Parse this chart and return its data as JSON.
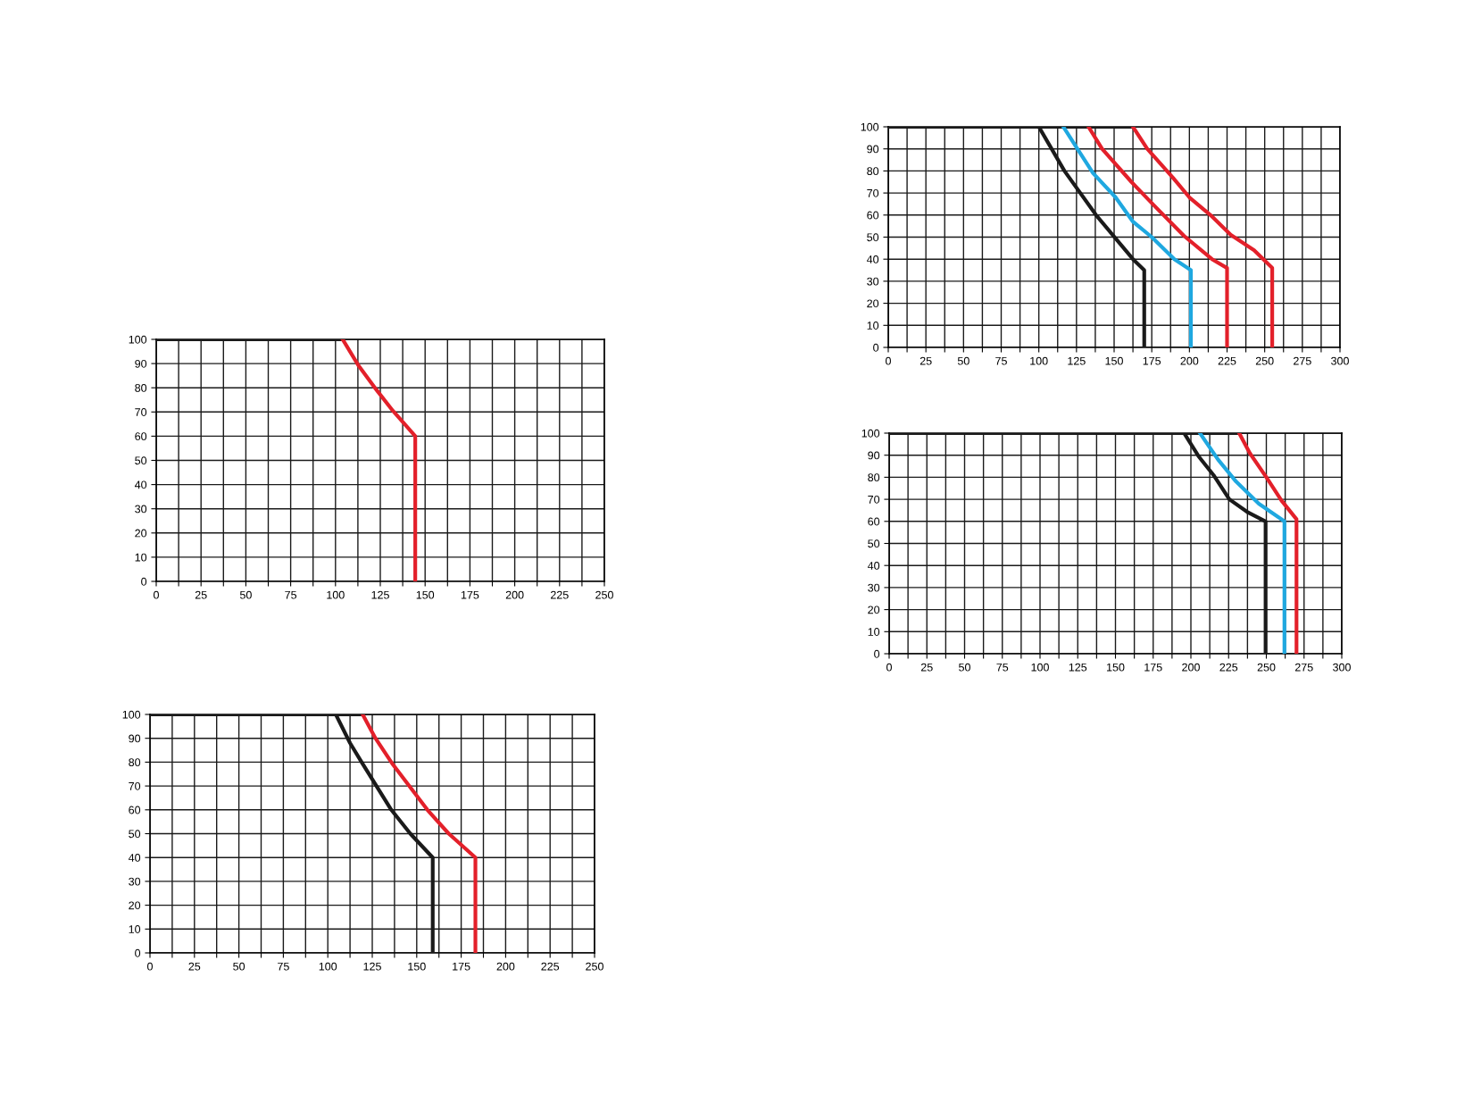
{
  "chart_data": [
    {
      "type": "line",
      "xlim": [
        0,
        250
      ],
      "ylim": [
        0,
        100
      ],
      "grid": true,
      "xticks": [
        0,
        {
          "value": 12.5,
          "label": null
        },
        25,
        {
          "value": 37.5,
          "label": null
        },
        50,
        {
          "value": 62.5,
          "label": null
        },
        75,
        {
          "value": 87.5,
          "label": null
        },
        100,
        {
          "value": 112.5,
          "label": null
        },
        125,
        {
          "value": 137.5,
          "label": null
        },
        150,
        {
          "value": 162.5,
          "label": null
        },
        175,
        {
          "value": 187.5,
          "label": null
        },
        200,
        {
          "value": 212.5,
          "label": null
        },
        225,
        {
          "value": 237.5,
          "label": null
        },
        250
      ],
      "yticks": [
        0,
        10,
        20,
        30,
        40,
        50,
        60,
        70,
        80,
        90,
        100
      ],
      "series": [
        {
          "color": "#1a1a1a",
          "x": [
            0,
            104
          ],
          "values": [
            100,
            100
          ]
        },
        {
          "color": "#e3202a",
          "x": [
            104,
            113,
            123,
            132,
            144.5,
            144.5
          ],
          "values": [
            100,
            89,
            79,
            70.5,
            60,
            0
          ]
        }
      ]
    },
    {
      "type": "line",
      "xlim": [
        0,
        250
      ],
      "ylim": [
        0,
        100
      ],
      "grid": true,
      "xticks": [
        0,
        {
          "value": 12.5,
          "label": null
        },
        25,
        {
          "value": 37.5,
          "label": null
        },
        50,
        {
          "value": 62.5,
          "label": null
        },
        75,
        {
          "value": 87.5,
          "label": null
        },
        100,
        {
          "value": 112.5,
          "label": null
        },
        125,
        {
          "value": 137.5,
          "label": null
        },
        150,
        {
          "value": 162.5,
          "label": null
        },
        175,
        {
          "value": 187.5,
          "label": null
        },
        200,
        {
          "value": 212.5,
          "label": null
        },
        225,
        {
          "value": 237.5,
          "label": null
        },
        250
      ],
      "yticks": [
        0,
        10,
        20,
        30,
        40,
        50,
        60,
        70,
        80,
        90,
        100
      ],
      "series": [
        {
          "color": "#1a1a1a",
          "x": [
            0,
            119.6
          ],
          "values": [
            100,
            100
          ]
        },
        {
          "color": "#1a1a1a",
          "x": [
            104.5,
            112.5,
            119,
            135.7,
            146.4,
            159,
            159
          ],
          "values": [
            100,
            88,
            80,
            60,
            50,
            40,
            0
          ]
        },
        {
          "color": "#e3202a",
          "x": [
            119.6,
            126.8,
            136.6,
            156,
            168,
            183,
            183
          ],
          "values": [
            100,
            90,
            79,
            60,
            50,
            40,
            0
          ]
        }
      ]
    },
    {
      "type": "line",
      "xlim": [
        0,
        300
      ],
      "ylim": [
        0,
        100
      ],
      "grid": true,
      "xticks": [
        0,
        {
          "value": 12.5,
          "label": null
        },
        25,
        {
          "value": 37.5,
          "label": null
        },
        50,
        {
          "value": 62.5,
          "label": null
        },
        75,
        {
          "value": 87.5,
          "label": null
        },
        100,
        {
          "value": 112.5,
          "label": null
        },
        125,
        {
          "value": 137.5,
          "label": null
        },
        150,
        {
          "value": 162.5,
          "label": null
        },
        175,
        {
          "value": 187.5,
          "label": null
        },
        200,
        {
          "value": 212.5,
          "label": null
        },
        225,
        {
          "value": 237.5,
          "label": null
        },
        250,
        {
          "value": 262.5,
          "label": null
        },
        275,
        {
          "value": 287.5,
          "label": null
        },
        300
      ],
      "yticks": [
        0,
        10,
        20,
        30,
        40,
        50,
        60,
        70,
        80,
        90,
        100
      ],
      "series": [
        {
          "color": "#1a1a1a",
          "x": [
            0,
            162.5
          ],
          "values": [
            100,
            100
          ]
        },
        {
          "color": "#1a1a1a",
          "x": [
            100,
            117,
            138,
            162.5,
            170,
            170
          ],
          "values": [
            100,
            80,
            60,
            40,
            35,
            0
          ]
        },
        {
          "color": "#1fa8e0",
          "x": [
            116.3,
            125.6,
            136,
            151,
            162.5,
            175,
            190,
            201,
            201
          ],
          "values": [
            100,
            90,
            79,
            68,
            57,
            50,
            40,
            35,
            0
          ]
        },
        {
          "color": "#e3202a",
          "x": [
            133,
            142,
            161.5,
            177,
            196.5,
            215,
            225,
            225
          ],
          "values": [
            100,
            90,
            75,
            64,
            50.5,
            40,
            36,
            0
          ]
        },
        {
          "color": "#e3202a",
          "x": [
            162.5,
            172,
            189,
            200,
            214,
            227.5,
            243,
            255,
            255
          ],
          "values": [
            100,
            90,
            77,
            68,
            60,
            51,
            44,
            36,
            0
          ]
        }
      ]
    },
    {
      "type": "line",
      "xlim": [
        0,
        300
      ],
      "ylim": [
        0,
        100
      ],
      "grid": true,
      "xticks": [
        0,
        {
          "value": 12.5,
          "label": null
        },
        25,
        {
          "value": 37.5,
          "label": null
        },
        50,
        {
          "value": 62.5,
          "label": null
        },
        75,
        {
          "value": 87.5,
          "label": null
        },
        100,
        {
          "value": 112.5,
          "label": null
        },
        125,
        {
          "value": 137.5,
          "label": null
        },
        150,
        {
          "value": 162.5,
          "label": null
        },
        175,
        {
          "value": 187.5,
          "label": null
        },
        200,
        {
          "value": 212.5,
          "label": null
        },
        225,
        {
          "value": 237.5,
          "label": null
        },
        250,
        {
          "value": 262.5,
          "label": null
        },
        275,
        {
          "value": 287.5,
          "label": null
        },
        300
      ],
      "yticks": [
        0,
        10,
        20,
        30,
        40,
        50,
        60,
        70,
        80,
        90,
        100
      ],
      "series": [
        {
          "color": "#1a1a1a",
          "x": [
            0,
            232
          ],
          "values": [
            100,
            100
          ]
        },
        {
          "color": "#1a1a1a",
          "x": [
            195.5,
            205,
            215,
            225.5,
            238,
            249.5,
            249.5
          ],
          "values": [
            100,
            89.6,
            81,
            70,
            64,
            60,
            0
          ]
        },
        {
          "color": "#1fa8e0",
          "x": [
            206,
            218,
            230,
            245,
            262,
            262
          ],
          "values": [
            100,
            88,
            78,
            68,
            60,
            0
          ]
        },
        {
          "color": "#e3202a",
          "x": [
            232,
            239,
            250.5,
            260,
            270,
            270
          ],
          "values": [
            100,
            91,
            79.5,
            69.5,
            61,
            0
          ]
        }
      ]
    }
  ]
}
